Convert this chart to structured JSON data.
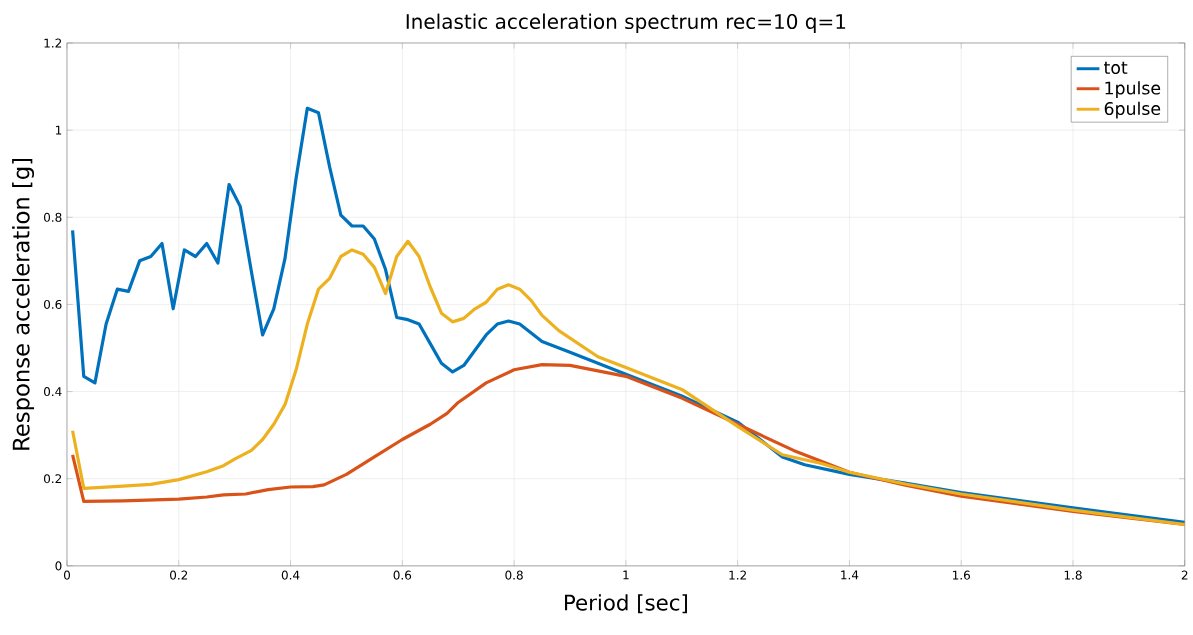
{
  "chart_data": {
    "type": "line",
    "title": "Inelastic acceleration spectrum rec=10 q=1",
    "xlabel": "Period [sec]",
    "ylabel": "Response acceleration [g]",
    "xlim": [
      0,
      2
    ],
    "ylim": [
      0,
      1.2
    ],
    "xticks": [
      0,
      0.2,
      0.4,
      0.6,
      0.8,
      1,
      1.2,
      1.4,
      1.6,
      1.8,
      2
    ],
    "yticks": [
      0,
      0.2,
      0.4,
      0.6,
      0.8,
      1,
      1.2
    ],
    "grid": true,
    "legend": "top right",
    "line_style": "solid",
    "marker": "none",
    "series": [
      {
        "name": "tot",
        "color": "#0072bd",
        "x": [
          0.01,
          0.03,
          0.05,
          0.07,
          0.09,
          0.11,
          0.13,
          0.15,
          0.17,
          0.19,
          0.21,
          0.23,
          0.25,
          0.27,
          0.29,
          0.31,
          0.33,
          0.35,
          0.37,
          0.39,
          0.41,
          0.43,
          0.45,
          0.47,
          0.49,
          0.51,
          0.53,
          0.55,
          0.57,
          0.59,
          0.61,
          0.63,
          0.65,
          0.67,
          0.69,
          0.71,
          0.73,
          0.75,
          0.77,
          0.79,
          0.81,
          0.83,
          0.85,
          0.9,
          1.0,
          1.1,
          1.2,
          1.28,
          1.32,
          1.4,
          1.5,
          1.6,
          1.8,
          2.0
        ],
        "values": [
          0.77,
          0.435,
          0.42,
          0.555,
          0.635,
          0.63,
          0.7,
          0.71,
          0.74,
          0.59,
          0.725,
          0.71,
          0.74,
          0.695,
          0.875,
          0.825,
          0.675,
          0.53,
          0.59,
          0.705,
          0.89,
          1.05,
          1.04,
          0.915,
          0.805,
          0.78,
          0.78,
          0.75,
          0.68,
          0.57,
          0.565,
          0.555,
          0.51,
          0.465,
          0.445,
          0.46,
          0.495,
          0.53,
          0.555,
          0.562,
          0.555,
          0.535,
          0.515,
          0.49,
          0.44,
          0.39,
          0.33,
          0.25,
          0.232,
          0.21,
          0.19,
          0.168,
          0.133,
          0.1
        ]
      },
      {
        "name": "1pulse",
        "color": "#d95319",
        "x": [
          0.01,
          0.03,
          0.1,
          0.2,
          0.25,
          0.28,
          0.32,
          0.36,
          0.4,
          0.44,
          0.46,
          0.5,
          0.55,
          0.6,
          0.65,
          0.68,
          0.7,
          0.75,
          0.8,
          0.85,
          0.9,
          1.0,
          1.1,
          1.2,
          1.3,
          1.4,
          1.5,
          1.6,
          1.8,
          2.0
        ],
        "values": [
          0.255,
          0.148,
          0.149,
          0.153,
          0.158,
          0.163,
          0.165,
          0.175,
          0.181,
          0.182,
          0.186,
          0.21,
          0.25,
          0.29,
          0.325,
          0.35,
          0.375,
          0.42,
          0.45,
          0.462,
          0.46,
          0.435,
          0.385,
          0.325,
          0.265,
          0.215,
          0.185,
          0.16,
          0.125,
          0.095
        ]
      },
      {
        "name": "6pulse",
        "color": "#edb120",
        "x": [
          0.01,
          0.03,
          0.1,
          0.15,
          0.2,
          0.25,
          0.28,
          0.3,
          0.33,
          0.35,
          0.37,
          0.39,
          0.41,
          0.43,
          0.45,
          0.47,
          0.49,
          0.51,
          0.53,
          0.55,
          0.57,
          0.59,
          0.61,
          0.63,
          0.65,
          0.67,
          0.69,
          0.71,
          0.73,
          0.75,
          0.77,
          0.79,
          0.81,
          0.83,
          0.85,
          0.88,
          0.95,
          1.0,
          1.1,
          1.2,
          1.28,
          1.35,
          1.4,
          1.5,
          1.6,
          1.8,
          2.0
        ],
        "values": [
          0.31,
          0.178,
          0.183,
          0.187,
          0.198,
          0.216,
          0.23,
          0.245,
          0.265,
          0.29,
          0.325,
          0.37,
          0.45,
          0.555,
          0.635,
          0.66,
          0.71,
          0.725,
          0.715,
          0.685,
          0.625,
          0.71,
          0.745,
          0.71,
          0.64,
          0.58,
          0.56,
          0.568,
          0.59,
          0.605,
          0.635,
          0.645,
          0.635,
          0.61,
          0.575,
          0.54,
          0.48,
          0.455,
          0.405,
          0.32,
          0.255,
          0.235,
          0.215,
          0.188,
          0.165,
          0.128,
          0.095
        ]
      }
    ]
  }
}
